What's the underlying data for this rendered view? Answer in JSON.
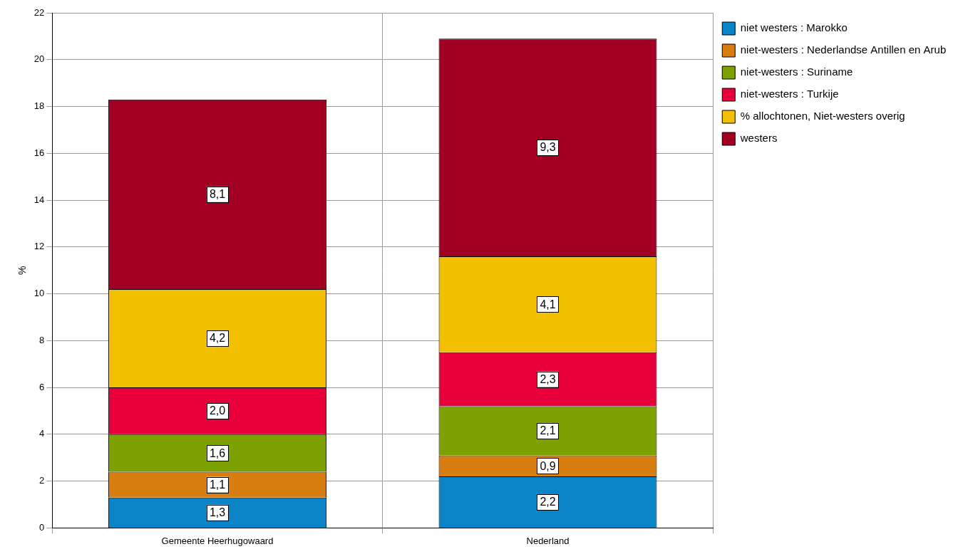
{
  "chart_data": {
    "type": "bar",
    "y_label": "%",
    "categories": [
      "Gemeente Heerhugowaard",
      "Nederland"
    ],
    "series": [
      {
        "name": "niet westers : Marokko",
        "color": "#0a84c6",
        "values": [
          1.3,
          2.2
        ],
        "value_labels": [
          "1,3",
          "2,2"
        ]
      },
      {
        "name": "niet-westers : Nederlandse Antillen en Aruba",
        "color": "#d87d0f",
        "values": [
          1.1,
          0.9
        ],
        "value_labels": [
          "1,1",
          "0,9"
        ]
      },
      {
        "name": "niet-westers : Suriname",
        "color": "#7ca100",
        "values": [
          1.6,
          2.1
        ],
        "value_labels": [
          "1,6",
          "2,1"
        ]
      },
      {
        "name": "niet-westers : Turkije",
        "color": "#e8003a",
        "values": [
          2.0,
          2.3
        ],
        "value_labels": [
          "2,0",
          "2,3"
        ]
      },
      {
        "name": "% allochtonen, Niet-westers overig",
        "color": "#f2c000",
        "values": [
          4.2,
          4.1
        ],
        "value_labels": [
          "4,2",
          "4,1"
        ]
      },
      {
        "name": "westers",
        "color": "#a10022",
        "values": [
          8.1,
          9.3
        ],
        "value_labels": [
          "8,1",
          "9,3"
        ]
      }
    ],
    "ylim": [
      0,
      22
    ],
    "yticks": [
      0,
      2,
      4,
      6,
      8,
      10,
      12,
      14,
      16,
      18,
      20,
      22
    ],
    "grid": true,
    "stacked": true,
    "legend": "right",
    "data_labels": true
  }
}
